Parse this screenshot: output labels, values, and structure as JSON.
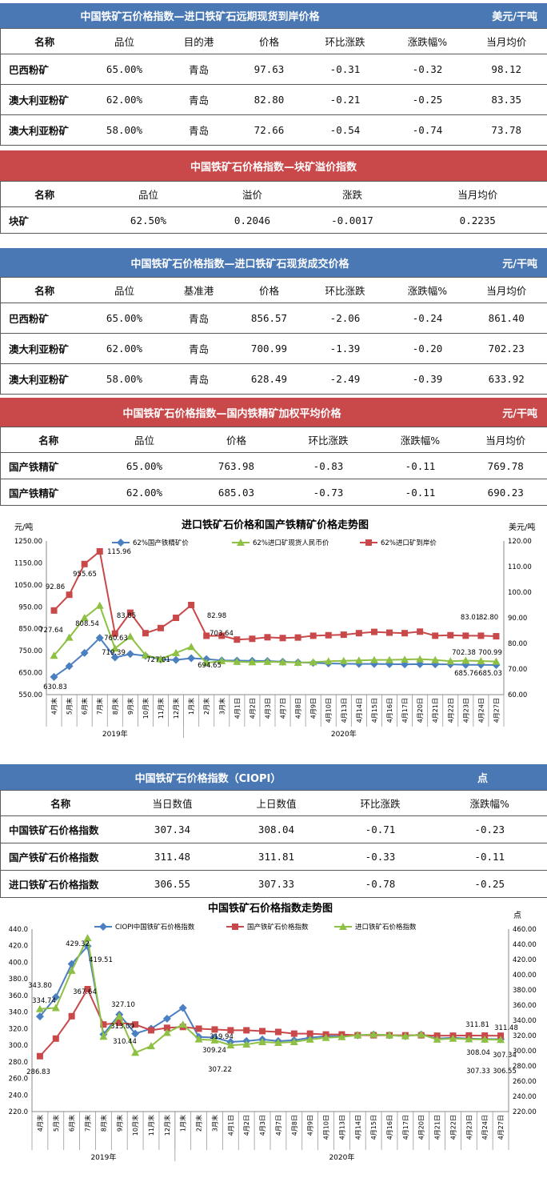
{
  "t1": {
    "title": "中国铁矿石价格指数—进口铁矿石远期现货到岸价格",
    "unit": "美元/干吨",
    "headers": [
      "名称",
      "品位",
      "目的港",
      "价格",
      "环比涨跌",
      "涨跌幅%",
      "当月均价"
    ],
    "rows": [
      [
        "巴西粉矿",
        "65.00%",
        "青岛",
        "97.63",
        "-0.31",
        "-0.32",
        "98.12"
      ],
      [
        "澳大利亚粉矿",
        "62.00%",
        "青岛",
        "82.80",
        "-0.21",
        "-0.25",
        "83.35"
      ],
      [
        "澳大利亚粉矿",
        "58.00%",
        "青岛",
        "72.66",
        "-0.54",
        "-0.74",
        "73.78"
      ]
    ]
  },
  "t2": {
    "title": "中国铁矿石价格指数—块矿溢价指数",
    "headers": [
      "名称",
      "品位",
      "溢价",
      "涨跌",
      "当月均价"
    ],
    "rows": [
      [
        "块矿",
        "62.50%",
        "0.2046",
        "-0.0017",
        "0.2235"
      ]
    ]
  },
  "t3": {
    "title": "中国铁矿石价格指数—进口铁矿石现货成交价格",
    "unit": "元/干吨",
    "headers": [
      "名称",
      "品位",
      "基准港",
      "价格",
      "环比涨跌",
      "涨跌幅%",
      "当月均价"
    ],
    "rows": [
      [
        "巴西粉矿",
        "65.00%",
        "青岛",
        "856.57",
        "-2.06",
        "-0.24",
        "861.40"
      ],
      [
        "澳大利亚粉矿",
        "62.00%",
        "青岛",
        "700.99",
        "-1.39",
        "-0.20",
        "702.23"
      ],
      [
        "澳大利亚粉矿",
        "58.00%",
        "青岛",
        "628.49",
        "-2.49",
        "-0.39",
        "633.92"
      ]
    ]
  },
  "t4": {
    "title": "中国铁矿石价格指数—国内铁精矿加权平均价格",
    "unit": "元/干吨",
    "headers": [
      "名称",
      "品位",
      "价格",
      "环比涨跌",
      "涨跌幅%",
      "当月均价"
    ],
    "rows": [
      [
        "国产铁精矿",
        "65.00%",
        "763.98",
        "-0.83",
        "-0.11",
        "769.78"
      ],
      [
        "国产铁精矿",
        "62.00%",
        "685.03",
        "-0.73",
        "-0.11",
        "690.23"
      ]
    ]
  },
  "t5": {
    "title": "中国铁矿石价格指数（CIOPI）",
    "unit": "点",
    "headers": [
      "名称",
      "当日数值",
      "上日数值",
      "环比涨跌",
      "涨跌幅%"
    ],
    "rows": [
      [
        "中国铁矿石价格指数",
        "307.34",
        "308.04",
        "-0.71",
        "-0.23"
      ],
      [
        "国产铁矿石价格指数",
        "311.48",
        "311.81",
        "-0.33",
        "-0.11"
      ],
      [
        "进口铁矿石价格指数",
        "306.55",
        "307.33",
        "-0.78",
        "-0.25"
      ]
    ]
  },
  "chart_data": [
    {
      "type": "line",
      "title": "进口铁矿石价格和国产铁精矿价格走势图",
      "ylabel": "元/吨",
      "y2label": "美元/吨",
      "ylim": [
        550,
        1250
      ],
      "y2lim": [
        60,
        120
      ],
      "yticks": [
        "1250.00",
        "1150.00",
        "1050.00",
        "950.00",
        "850.00",
        "750.00",
        "650.00",
        "550.00"
      ],
      "y2ticks": [
        "120.00",
        "110.00",
        "100.00",
        "90.00",
        "80.00",
        "70.00",
        "60.00"
      ],
      "categories": [
        "4月末",
        "5月末",
        "6月末",
        "7月末",
        "8月末",
        "9月末",
        "10月末",
        "11月末",
        "12月末",
        "1月末",
        "2月末",
        "3月末",
        "4月1日",
        "4月2日",
        "4月3日",
        "4月7日",
        "4月8日",
        "4月9日",
        "4月10日",
        "4月13日",
        "4月14日",
        "4月15日",
        "4月16日",
        "4月17日",
        "4月20日",
        "4月21日",
        "4月22日",
        "4月23日",
        "4月24日",
        "4月27日"
      ],
      "year_labels": [
        "2019年",
        "2020年"
      ],
      "legend_position": "top",
      "series": [
        {
          "name": "62%国产铁精矿价",
          "axis": "left",
          "color": "#4a7fc1",
          "marker": "diamond",
          "values": [
            630.83,
            680,
            740,
            808.54,
            719.39,
            735,
            727.01,
            710,
            708,
            716,
            712,
            706,
            705,
            704,
            703,
            700,
            697,
            695,
            692,
            691,
            690,
            690,
            689,
            688,
            689,
            688,
            688,
            685.76,
            686,
            685.03
          ]
        },
        {
          "name": "62%进口矿现货人民币价",
          "axis": "left",
          "color": "#8dc043",
          "marker": "triangle",
          "values": [
            727.64,
            810,
            900,
            955.65,
            760.63,
            815,
            730,
            712,
            740,
            768,
            694.65,
            703.64,
            700,
            698,
            700,
            698,
            696,
            698,
            702,
            704,
            706,
            708,
            708,
            710,
            712,
            708,
            702.38,
            705,
            703,
            700.99
          ]
        },
        {
          "name": "62%进口矿到岸价",
          "axis": "right",
          "color": "#c9484a",
          "marker": "square",
          "values": [
            92.86,
            99,
            111,
            115.96,
            83.85,
            92,
            84,
            86,
            90,
            95,
            82.98,
            83,
            81.5,
            81.8,
            82.4,
            82.1,
            82.3,
            83,
            83.2,
            83.4,
            84,
            84.5,
            84.2,
            84,
            84.6,
            83,
            83.2,
            83.01,
            83,
            82.8
          ]
        }
      ],
      "data_labels": [
        "92.86",
        "727.64",
        "630.83",
        "955.65",
        "808.54",
        "115.96",
        "83.85",
        "760.63",
        "719.39",
        "727.01",
        "82.98",
        "703.64",
        "694.65",
        "83.01",
        "82.80",
        "702.38",
        "700.99",
        "685.76",
        "685.03"
      ]
    },
    {
      "type": "line",
      "title": "中国铁矿石价格指数走势图",
      "y2label": "点",
      "ylim": [
        220,
        440
      ],
      "y2lim": [
        220,
        460
      ],
      "yticks": [
        "440.0",
        "420.0",
        "400.0",
        "380.0",
        "360.0",
        "340.0",
        "320.0",
        "300.0",
        "280.0",
        "260.0",
        "240.0",
        "220.0"
      ],
      "y2ticks": [
        "460.00",
        "440.00",
        "420.00",
        "400.00",
        "380.00",
        "360.00",
        "340.00",
        "320.00",
        "300.00",
        "280.00",
        "260.00",
        "240.00",
        "220.00"
      ],
      "categories": [
        "4月末",
        "5月末",
        "6月末",
        "7月末",
        "8月末",
        "9月末",
        "10月末",
        "11月末",
        "12月末",
        "1月末",
        "2月末",
        "3月末",
        "4月1日",
        "4月2日",
        "4月3日",
        "4月7日",
        "4月8日",
        "4月9日",
        "4月10日",
        "4月13日",
        "4月14日",
        "4月15日",
        "4月16日",
        "4月17日",
        "4月20日",
        "4月21日",
        "4月22日",
        "4月23日",
        "4月24日",
        "4月27日"
      ],
      "year_labels": [
        "2019年",
        "2020年"
      ],
      "legend_position": "top",
      "series": [
        {
          "name": "CIOPI中国铁矿石价格指数",
          "axis": "left",
          "color": "#4a7fc1",
          "marker": "diamond",
          "values": [
            334.74,
            358,
            398,
            419.51,
            313.09,
            337,
            314,
            320,
            332,
            345,
            310,
            309.24,
            304,
            305,
            307,
            305,
            306,
            309,
            311,
            311,
            312,
            313,
            312,
            311,
            313,
            308,
            309,
            308.04,
            307.5,
            307.34
          ]
        },
        {
          "name": "国产铁矿石价格指数",
          "axis": "left",
          "color": "#c9484a",
          "marker": "square",
          "values": [
            286.83,
            308,
            335,
            367.64,
            325,
            327.1,
            325,
            318,
            321,
            322,
            319.94,
            319,
            318,
            318,
            317,
            316,
            314,
            314,
            313,
            313,
            312,
            312,
            312,
            312,
            312,
            311.5,
            311.5,
            311.81,
            311.6,
            311.48
          ]
        },
        {
          "name": "进口铁矿石价格指数",
          "axis": "left",
          "color": "#8dc043",
          "marker": "triangle",
          "values": [
            343.8,
            345,
            390,
            429.32,
            310.44,
            335,
            291,
            299,
            315,
            325,
            307.22,
            306,
            300,
            301,
            304,
            303,
            304,
            307,
            309,
            310,
            312,
            313,
            312,
            311,
            313,
            307,
            308,
            307.33,
            307,
            306.55
          ]
        }
      ],
      "data_labels": [
        "343.80",
        "334.74",
        "286.83",
        "429.32",
        "419.51",
        "367.64",
        "327.10",
        "313.09",
        "310.44",
        "319.94",
        "309.24",
        "307.22",
        "311.81",
        "308.04",
        "307.33",
        "311.48",
        "307.34",
        "306.55"
      ]
    }
  ]
}
